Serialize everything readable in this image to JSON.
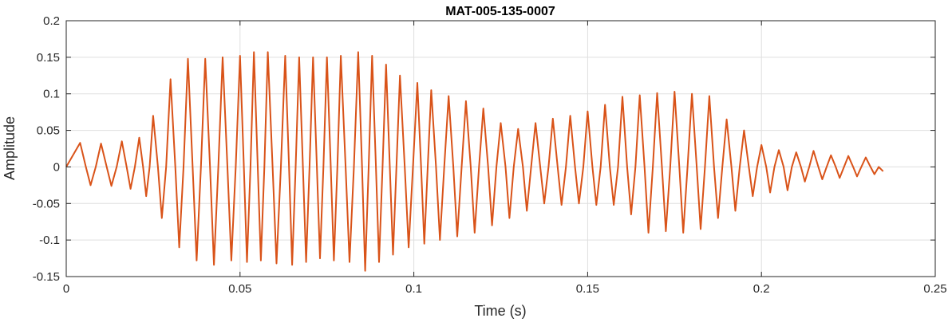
{
  "chart_data": {
    "type": "line",
    "title": "MAT-005-135-0007",
    "xlabel": "Time (s)",
    "ylabel": "Amplitude",
    "xlim": [
      0,
      0.25
    ],
    "ylim": [
      -0.15,
      0.2
    ],
    "xticks": [
      0,
      0.05,
      0.1,
      0.15,
      0.2,
      0.25
    ],
    "xtick_labels": [
      "0",
      "0.05",
      "0.1",
      "0.15",
      "0.2",
      "0.25"
    ],
    "yticks": [
      -0.15,
      -0.1,
      -0.05,
      0,
      0.05,
      0.1,
      0.15,
      0.2
    ],
    "ytick_labels": [
      "-0.15",
      "-0.1",
      "-0.05",
      "0",
      "0.05",
      "0.1",
      "0.15",
      "0.2"
    ],
    "grid": true,
    "series": [
      {
        "color": "#D95319",
        "x_start": 0,
        "x_end": 0.235,
        "peaks": [
          [
            0.004,
            0.033,
            -0.025
          ],
          [
            0.01,
            0.032,
            -0.026
          ],
          [
            0.016,
            0.035,
            -0.03
          ],
          [
            0.021,
            0.04,
            -0.04
          ],
          [
            0.025,
            0.07,
            -0.07
          ],
          [
            0.03,
            0.12,
            -0.11
          ],
          [
            0.035,
            0.148,
            -0.128
          ],
          [
            0.04,
            0.148,
            -0.134
          ],
          [
            0.045,
            0.15,
            -0.128
          ],
          [
            0.05,
            0.152,
            -0.13
          ],
          [
            0.054,
            0.157,
            -0.128
          ],
          [
            0.058,
            0.157,
            -0.132
          ],
          [
            0.063,
            0.152,
            -0.134
          ],
          [
            0.067,
            0.15,
            -0.13
          ],
          [
            0.071,
            0.15,
            -0.125
          ],
          [
            0.075,
            0.15,
            -0.128
          ],
          [
            0.079,
            0.152,
            -0.13
          ],
          [
            0.084,
            0.157,
            -0.142
          ],
          [
            0.088,
            0.152,
            -0.13
          ],
          [
            0.092,
            0.14,
            -0.12
          ],
          [
            0.096,
            0.125,
            -0.11
          ],
          [
            0.101,
            0.115,
            -0.105
          ],
          [
            0.105,
            0.105,
            -0.1
          ],
          [
            0.11,
            0.097,
            -0.095
          ],
          [
            0.115,
            0.09,
            -0.09
          ],
          [
            0.12,
            0.08,
            -0.08
          ],
          [
            0.125,
            0.06,
            -0.07
          ],
          [
            0.13,
            0.052,
            -0.06
          ],
          [
            0.135,
            0.06,
            -0.05
          ],
          [
            0.14,
            0.066,
            -0.052
          ],
          [
            0.145,
            0.07,
            -0.05
          ],
          [
            0.15,
            0.076,
            -0.052
          ],
          [
            0.155,
            0.085,
            -0.052
          ],
          [
            0.16,
            0.096,
            -0.065
          ],
          [
            0.165,
            0.098,
            -0.09
          ],
          [
            0.17,
            0.101,
            -0.088
          ],
          [
            0.175,
            0.103,
            -0.09
          ],
          [
            0.18,
            0.1,
            -0.085
          ],
          [
            0.185,
            0.097,
            -0.07
          ],
          [
            0.19,
            0.065,
            -0.06
          ],
          [
            0.195,
            0.05,
            -0.04
          ],
          [
            0.2,
            0.03,
            -0.035
          ],
          [
            0.205,
            0.023,
            -0.032
          ],
          [
            0.21,
            0.02,
            -0.02
          ],
          [
            0.215,
            0.022,
            -0.017
          ],
          [
            0.22,
            0.016,
            -0.015
          ],
          [
            0.225,
            0.015,
            -0.013
          ],
          [
            0.23,
            0.013,
            -0.01
          ]
        ]
      }
    ]
  }
}
